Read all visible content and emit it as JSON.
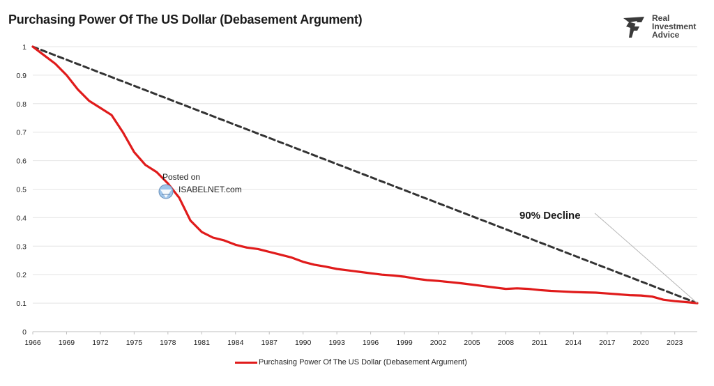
{
  "chart_data": {
    "type": "line",
    "title": "Purchasing Power Of The US Dollar (Debasement Argument)",
    "xlabel": "",
    "ylabel": "",
    "xlim": [
      1966,
      2025
    ],
    "ylim": [
      0,
      1
    ],
    "x_ticks": [
      "1966",
      "1969",
      "1972",
      "1975",
      "1978",
      "1981",
      "1984",
      "1987",
      "1990",
      "1993",
      "1996",
      "1999",
      "2002",
      "2005",
      "2008",
      "2011",
      "2014",
      "2017",
      "2020",
      "2023"
    ],
    "y_ticks": [
      "0",
      "0.1",
      "0.2",
      "0.3",
      "0.4",
      "0.5",
      "0.6",
      "0.7",
      "0.8",
      "0.9",
      "1"
    ],
    "grid": true,
    "legend_position": "bottom",
    "series": [
      {
        "name": "Purchasing Power Of The US Dollar (Debasement Argument)",
        "color": "#e01b1b",
        "style": "solid",
        "x": [
          1966,
          1967,
          1968,
          1969,
          1970,
          1971,
          1972,
          1973,
          1974,
          1975,
          1976,
          1977,
          1978,
          1979,
          1980,
          1981,
          1982,
          1983,
          1984,
          1985,
          1986,
          1987,
          1988,
          1989,
          1990,
          1991,
          1992,
          1993,
          1994,
          1995,
          1996,
          1997,
          1998,
          1999,
          2000,
          2001,
          2002,
          2003,
          2004,
          2005,
          2006,
          2007,
          2008,
          2009,
          2010,
          2011,
          2012,
          2013,
          2014,
          2015,
          2016,
          2017,
          2018,
          2019,
          2020,
          2021,
          2022,
          2023,
          2024,
          2025
        ],
        "y": [
          1.0,
          0.97,
          0.94,
          0.9,
          0.85,
          0.81,
          0.785,
          0.76,
          0.7,
          0.63,
          0.585,
          0.56,
          0.52,
          0.47,
          0.39,
          0.35,
          0.33,
          0.32,
          0.305,
          0.295,
          0.29,
          0.28,
          0.27,
          0.26,
          0.245,
          0.235,
          0.228,
          0.22,
          0.215,
          0.21,
          0.205,
          0.2,
          0.197,
          0.193,
          0.186,
          0.181,
          0.178,
          0.174,
          0.17,
          0.165,
          0.16,
          0.155,
          0.15,
          0.152,
          0.15,
          0.146,
          0.143,
          0.141,
          0.139,
          0.138,
          0.137,
          0.134,
          0.131,
          0.128,
          0.127,
          0.123,
          0.112,
          0.107,
          0.104,
          0.1
        ]
      },
      {
        "name": "",
        "color": "#333333",
        "style": "dashed",
        "x": [
          1966,
          2025
        ],
        "y": [
          1.0,
          0.1
        ]
      }
    ],
    "annotations": [
      {
        "text": "90% Decline",
        "target_x": 2025,
        "target_y": 0.1
      }
    ]
  },
  "watermark": {
    "line1": "Posted on",
    "line2": "ISABELNET.com"
  },
  "logo": {
    "line1": "Real",
    "line2": "Investment",
    "line3": "Advice"
  }
}
